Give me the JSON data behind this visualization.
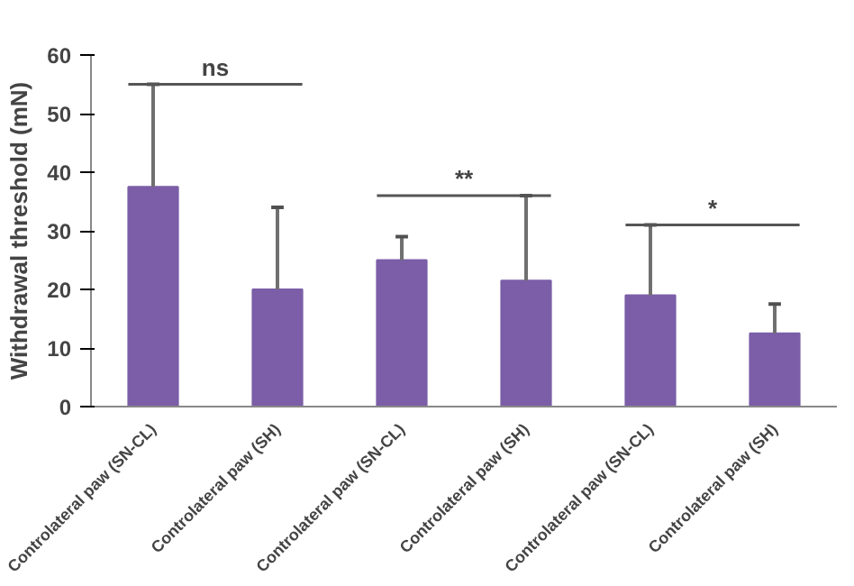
{
  "chart_data": {
    "type": "bar",
    "ylabel": "Withdrawal threshold (mN)",
    "categories": [
      "Controlateral paw (SN-CL)",
      "Controlateral paw (SH)",
      "Controlateral paw (SN-CL)",
      "Controlateral paw (SH)",
      "Controlateral paw (SN-CL)",
      "Controlateral paw (SH)"
    ],
    "values": [
      37.5,
      20,
      25,
      21.5,
      19,
      12.5
    ],
    "errors": [
      [
        37.5,
        55
      ],
      [
        20,
        34
      ],
      [
        25,
        29
      ],
      [
        21.5,
        36
      ],
      [
        19,
        31
      ],
      [
        12.5,
        17.5
      ]
    ],
    "color": "#7b5ea7",
    "ylim": [
      0,
      60
    ],
    "yticks": [
      0,
      10,
      20,
      30,
      40,
      50,
      60
    ],
    "grid": false,
    "annotations": [
      "ns",
      "**",
      "*"
    ]
  }
}
